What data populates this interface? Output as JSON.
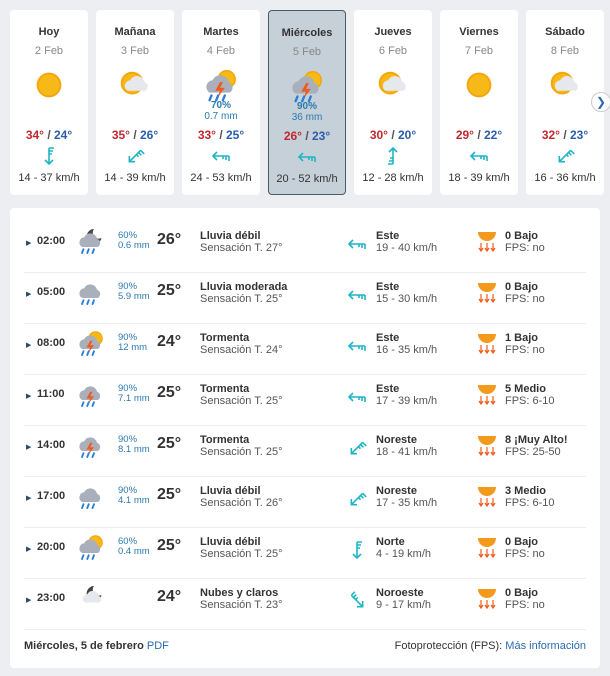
{
  "colors": {
    "max": "#c0282d",
    "min": "#2b5cab",
    "wind": "#1fb5c5",
    "precip": "#2a7ab0",
    "link": "#2a6ab0"
  },
  "days": [
    {
      "name": "Hoy",
      "date": "2 Feb",
      "icon": "sun",
      "prob": "",
      "mm": "",
      "max": "34°",
      "min": "24°",
      "wind_dir": "N",
      "wind": "14 - 37 km/h"
    },
    {
      "name": "Mañana",
      "date": "3 Feb",
      "icon": "sun-cloud",
      "prob": "",
      "mm": "",
      "max": "35°",
      "min": "26°",
      "wind_dir": "NE",
      "wind": "14 - 39 km/h"
    },
    {
      "name": "Martes",
      "date": "4 Feb",
      "icon": "storm-sun",
      "prob": "70%",
      "mm": "0.7 mm",
      "max": "33°",
      "min": "25°",
      "wind_dir": "E",
      "wind": "24 - 53 km/h"
    },
    {
      "name": "Miércoles",
      "date": "5 Feb",
      "icon": "storm-sun",
      "prob": "90%",
      "mm": "36 mm",
      "max": "26°",
      "min": "23°",
      "wind_dir": "E",
      "wind": "20 - 52 km/h",
      "selected": true
    },
    {
      "name": "Jueves",
      "date": "6 Feb",
      "icon": "sun-cloud",
      "prob": "",
      "mm": "",
      "max": "30°",
      "min": "20°",
      "wind_dir": "S",
      "wind": "12 - 28 km/h"
    },
    {
      "name": "Viernes",
      "date": "7 Feb",
      "icon": "sun",
      "prob": "",
      "mm": "",
      "max": "29°",
      "min": "22°",
      "wind_dir": "E",
      "wind": "18 - 39 km/h"
    },
    {
      "name": "Sábado",
      "date": "8 Feb",
      "icon": "sun-cloud",
      "prob": "",
      "mm": "",
      "max": "32°",
      "min": "23°",
      "wind_dir": "NE",
      "wind": "16 - 36 km/h"
    }
  ],
  "next_icon": "chevron-right-icon",
  "hours": [
    {
      "time": "02:00",
      "icon": "moon-rain",
      "prob": "60%",
      "mm": "0.6 mm",
      "temp": "26°",
      "desc": "Lluvia débil",
      "feels": "Sensación T. 27°",
      "wind_dir": "E",
      "dir": "Este",
      "wind": "19 - 40 km/h",
      "uv": "0 Bajo",
      "fps": "FPS: no"
    },
    {
      "time": "05:00",
      "icon": "rain",
      "prob": "90%",
      "mm": "5.9 mm",
      "temp": "25°",
      "desc": "Lluvia moderada",
      "feels": "Sensación T. 25°",
      "wind_dir": "E",
      "dir": "Este",
      "wind": "15 - 30 km/h",
      "uv": "0 Bajo",
      "fps": "FPS: no"
    },
    {
      "time": "08:00",
      "icon": "storm-sun",
      "prob": "90%",
      "mm": "12 mm",
      "temp": "24°",
      "desc": "Tormenta",
      "feels": "Sensación T. 24°",
      "wind_dir": "E",
      "dir": "Este",
      "wind": "16 - 35 km/h",
      "uv": "1 Bajo",
      "fps": "FPS: no"
    },
    {
      "time": "11:00",
      "icon": "storm",
      "prob": "90%",
      "mm": "7.1 mm",
      "temp": "25°",
      "desc": "Tormenta",
      "feels": "Sensación T. 25°",
      "wind_dir": "E",
      "dir": "Este",
      "wind": "17 - 39 km/h",
      "uv": "5 Medio",
      "fps": "FPS: 6-10"
    },
    {
      "time": "14:00",
      "icon": "storm",
      "prob": "90%",
      "mm": "8.1 mm",
      "temp": "25°",
      "desc": "Tormenta",
      "feels": "Sensación T. 25°",
      "wind_dir": "NE",
      "dir": "Noreste",
      "wind": "18 - 41 km/h",
      "uv": "8 ¡Muy Alto!",
      "fps": "FPS: 25-50"
    },
    {
      "time": "17:00",
      "icon": "rain",
      "prob": "90%",
      "mm": "4.1 mm",
      "temp": "25°",
      "desc": "Lluvia débil",
      "feels": "Sensación T. 26°",
      "wind_dir": "NE",
      "dir": "Noreste",
      "wind": "17 - 35 km/h",
      "uv": "3 Medio",
      "fps": "FPS: 6-10"
    },
    {
      "time": "20:00",
      "icon": "sun-rain",
      "prob": "60%",
      "mm": "0.4 mm",
      "temp": "25°",
      "desc": "Lluvia débil",
      "feels": "Sensación T. 25°",
      "wind_dir": "N",
      "dir": "Norte",
      "wind": "4 - 19 km/h",
      "uv": "0 Bajo",
      "fps": "FPS: no"
    },
    {
      "time": "23:00",
      "icon": "moon-cloud",
      "prob": "",
      "mm": "",
      "temp": "24°",
      "desc": "Nubes y claros",
      "feels": "Sensación T. 23°",
      "wind_dir": "NW",
      "dir": "Noroeste",
      "wind": "9 - 17 km/h",
      "uv": "0 Bajo",
      "fps": "FPS: no"
    }
  ],
  "footer": {
    "date": "Miércoles, 5 de febrero",
    "pdf": "PDF",
    "fps_label": "Fotoprotección (FPS):",
    "more": "Más información"
  }
}
